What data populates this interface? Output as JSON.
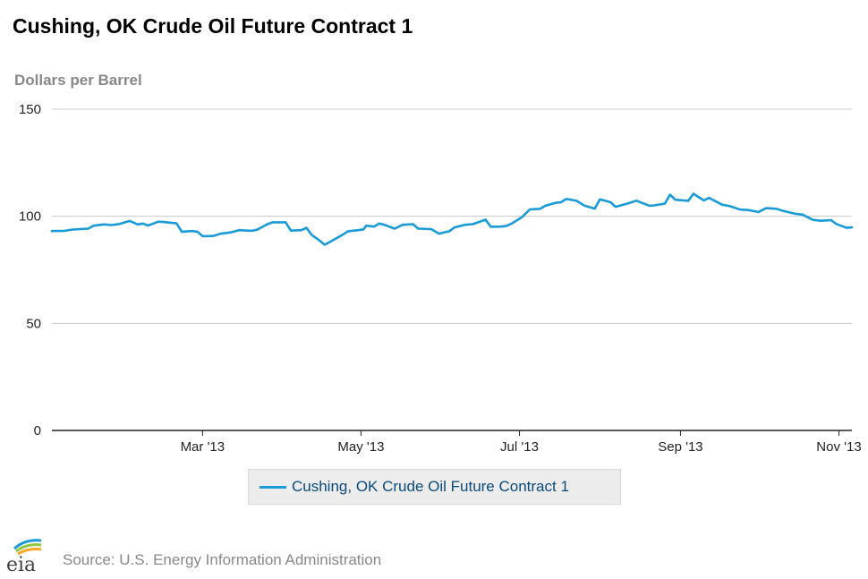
{
  "chart_data": {
    "type": "line",
    "title": "Cushing, OK Crude Oil Future Contract 1",
    "ylabel": "Dollars per Barrel",
    "xlabel": "",
    "ylim": [
      0,
      150
    ],
    "y_ticks": [
      0,
      50,
      100,
      150
    ],
    "x_range": [
      "2013-01-02",
      "2013-11-06"
    ],
    "x_ticks": [
      {
        "date": "2013-03-01",
        "label": "Mar '13"
      },
      {
        "date": "2013-05-01",
        "label": "May '13"
      },
      {
        "date": "2013-07-01",
        "label": "Jul '13"
      },
      {
        "date": "2013-09-01",
        "label": "Sep '13"
      },
      {
        "date": "2013-11-01",
        "label": "Nov '13"
      }
    ],
    "grid": true,
    "legend_position": "bottom-center",
    "series": [
      {
        "name": "Cushing, OK Crude Oil Future Contract 1",
        "color": "#1a9bd7",
        "points": [
          [
            "2013-01-02",
            93.1
          ],
          [
            "2013-01-07",
            93.2
          ],
          [
            "2013-01-10",
            93.8
          ],
          [
            "2013-01-14",
            94.1
          ],
          [
            "2013-01-16",
            94.2
          ],
          [
            "2013-01-18",
            95.6
          ],
          [
            "2013-01-22",
            96.2
          ],
          [
            "2013-01-25",
            95.9
          ],
          [
            "2013-01-28",
            96.4
          ],
          [
            "2013-02-01",
            97.8
          ],
          [
            "2013-02-04",
            96.2
          ],
          [
            "2013-02-06",
            96.6
          ],
          [
            "2013-02-08",
            95.7
          ],
          [
            "2013-02-12",
            97.5
          ],
          [
            "2013-02-14",
            97.3
          ],
          [
            "2013-02-19",
            96.7
          ],
          [
            "2013-02-21",
            92.8
          ],
          [
            "2013-02-25",
            93.1
          ],
          [
            "2013-02-27",
            92.8
          ],
          [
            "2013-03-01",
            90.7
          ],
          [
            "2013-03-05",
            90.8
          ],
          [
            "2013-03-08",
            91.9
          ],
          [
            "2013-03-12",
            92.5
          ],
          [
            "2013-03-15",
            93.5
          ],
          [
            "2013-03-20",
            93.2
          ],
          [
            "2013-03-22",
            93.7
          ],
          [
            "2013-03-26",
            96.3
          ],
          [
            "2013-03-28",
            97.2
          ],
          [
            "2013-04-02",
            97.2
          ],
          [
            "2013-04-04",
            93.3
          ],
          [
            "2013-04-08",
            93.5
          ],
          [
            "2013-04-10",
            94.6
          ],
          [
            "2013-04-12",
            91.3
          ],
          [
            "2013-04-15",
            88.7
          ],
          [
            "2013-04-17",
            86.7
          ],
          [
            "2013-04-19",
            88.0
          ],
          [
            "2013-04-24",
            91.4
          ],
          [
            "2013-04-26",
            93.0
          ],
          [
            "2013-04-30",
            93.5
          ],
          [
            "2013-05-02",
            93.9
          ],
          [
            "2013-05-03",
            95.6
          ],
          [
            "2013-05-06",
            95.2
          ],
          [
            "2013-05-08",
            96.6
          ],
          [
            "2013-05-10",
            96.0
          ],
          [
            "2013-05-14",
            94.2
          ],
          [
            "2013-05-17",
            96.0
          ],
          [
            "2013-05-21",
            96.3
          ],
          [
            "2013-05-23",
            94.2
          ],
          [
            "2013-05-28",
            94.0
          ],
          [
            "2013-05-31",
            91.9
          ],
          [
            "2013-06-04",
            93.0
          ],
          [
            "2013-06-06",
            94.8
          ],
          [
            "2013-06-10",
            96.0
          ],
          [
            "2013-06-13",
            96.3
          ],
          [
            "2013-06-18",
            98.4
          ],
          [
            "2013-06-20",
            95.1
          ],
          [
            "2013-06-24",
            95.2
          ],
          [
            "2013-06-26",
            95.5
          ],
          [
            "2013-06-28",
            96.6
          ],
          [
            "2013-07-02",
            99.6
          ],
          [
            "2013-07-05",
            103.2
          ],
          [
            "2013-07-09",
            103.5
          ],
          [
            "2013-07-11",
            104.9
          ],
          [
            "2013-07-15",
            106.3
          ],
          [
            "2013-07-17",
            106.5
          ],
          [
            "2013-07-19",
            108.1
          ],
          [
            "2013-07-23",
            107.2
          ],
          [
            "2013-07-26",
            105.0
          ],
          [
            "2013-07-30",
            103.6
          ],
          [
            "2013-08-01",
            107.9
          ],
          [
            "2013-08-05",
            106.6
          ],
          [
            "2013-08-07",
            104.4
          ],
          [
            "2013-08-12",
            106.1
          ],
          [
            "2013-08-15",
            107.3
          ],
          [
            "2013-08-20",
            104.9
          ],
          [
            "2013-08-22",
            105.1
          ],
          [
            "2013-08-26",
            105.9
          ],
          [
            "2013-08-28",
            110.1
          ],
          [
            "2013-08-30",
            107.7
          ],
          [
            "2013-09-04",
            107.2
          ],
          [
            "2013-09-06",
            110.5
          ],
          [
            "2013-09-10",
            107.4
          ],
          [
            "2013-09-12",
            108.6
          ],
          [
            "2013-09-17",
            105.4
          ],
          [
            "2013-09-20",
            104.7
          ],
          [
            "2013-09-24",
            103.1
          ],
          [
            "2013-09-27",
            102.9
          ],
          [
            "2013-10-01",
            102.0
          ],
          [
            "2013-10-04",
            103.8
          ],
          [
            "2013-10-08",
            103.5
          ],
          [
            "2013-10-10",
            102.7
          ],
          [
            "2013-10-15",
            101.2
          ],
          [
            "2013-10-18",
            100.8
          ],
          [
            "2013-10-22",
            98.3
          ],
          [
            "2013-10-25",
            97.9
          ],
          [
            "2013-10-29",
            98.2
          ],
          [
            "2013-10-31",
            96.4
          ],
          [
            "2013-11-04",
            94.6
          ],
          [
            "2013-11-06",
            94.8
          ]
        ]
      }
    ]
  },
  "footer": {
    "source": "Source: U.S. Energy Information Administration",
    "logo_text": "eia"
  }
}
